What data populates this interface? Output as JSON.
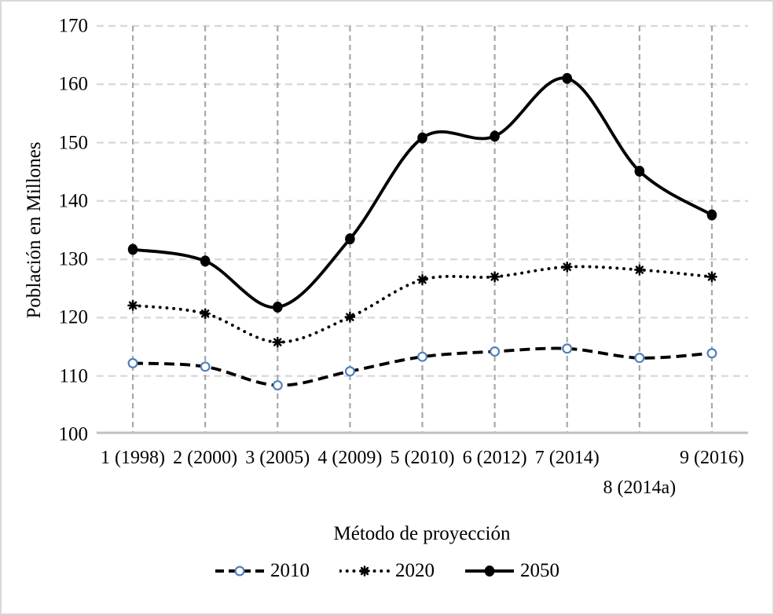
{
  "chart_data": {
    "type": "line",
    "title": "",
    "xlabel": "Método de proyección",
    "ylabel": "Población en Millones",
    "categories": [
      "1 (1998)",
      "2 (2000)",
      "3 (2005)",
      "4 (2009)",
      "5 (2010)",
      "6 (2012)",
      "7 (2014)",
      "8 (2014a)",
      "9 (2016)"
    ],
    "label_rows": [
      0,
      0,
      0,
      0,
      0,
      0,
      0,
      1,
      0
    ],
    "y_ticks": [
      170,
      160,
      150,
      140,
      130,
      120,
      110,
      100
    ],
    "ylim": [
      100,
      170
    ],
    "grid": "both",
    "legend_position": "bottom",
    "smoothed_lines": true,
    "series": [
      {
        "name": "2010",
        "line_style": "dashed",
        "marker": "open-circle",
        "line_color": "#000000",
        "marker_color": "#4F81BD",
        "values": [
          112.2,
          111.6,
          108.4,
          110.8,
          113.3,
          114.2,
          114.7,
          113.1,
          113.9
        ]
      },
      {
        "name": "2020",
        "line_style": "dotted",
        "marker": "asterisk",
        "line_color": "#000000",
        "marker_color": "#000000",
        "values": [
          122.1,
          120.7,
          115.8,
          120.1,
          126.5,
          127.0,
          128.7,
          128.2,
          127.0
        ]
      },
      {
        "name": "2050",
        "line_style": "solid",
        "marker": "filled-circle",
        "line_color": "#000000",
        "marker_color": "#000000",
        "values": [
          131.7,
          129.7,
          121.8,
          133.5,
          150.8,
          151.1,
          161.0,
          145.1,
          137.6
        ]
      }
    ],
    "colors": {
      "series_line": "#000000",
      "marker_blue": "#4F81BD",
      "grid_vertical": "#a8a8a8",
      "grid_horizontal": "#d9d9d9",
      "axis_line": "#c0c0c0",
      "frame_border": "#d9d9d9",
      "background": "#ffffff",
      "text": "#000000"
    }
  }
}
